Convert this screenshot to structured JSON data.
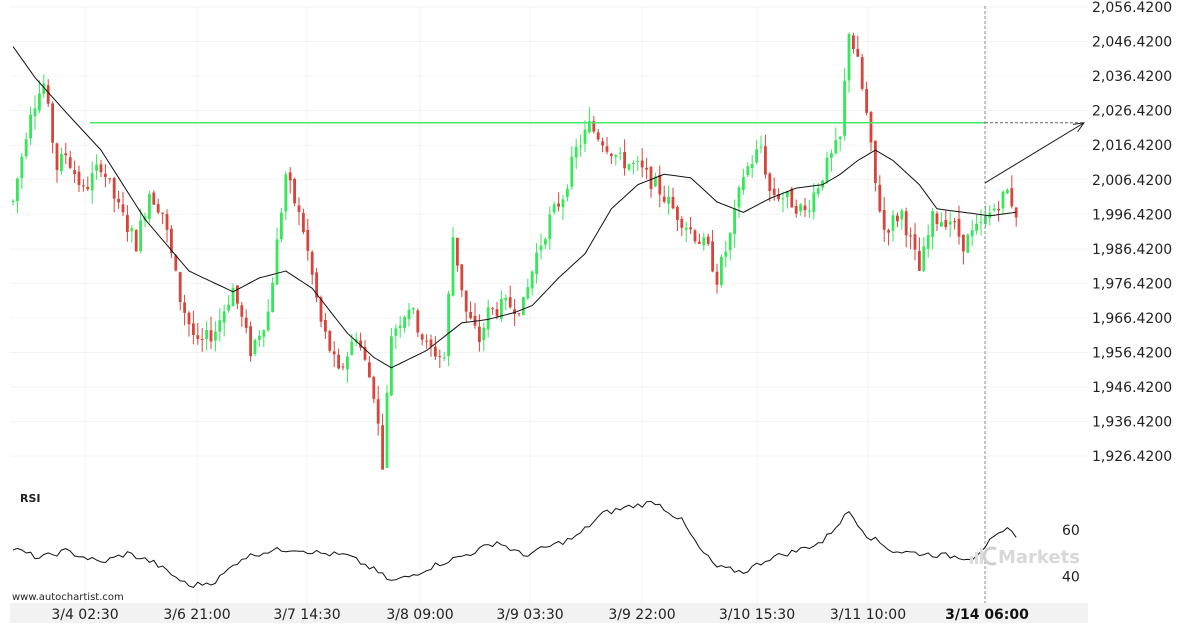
{
  "chart_data": {
    "type": "candlestick",
    "symbol": "",
    "y_axis": {
      "ticks": [
        "2,056.4200",
        "2,046.4200",
        "2,036.4200",
        "2,026.4200",
        "2,016.4200",
        "2,006.4200",
        "1,996.4200",
        "1,986.4200",
        "1,976.4200",
        "1,966.4200",
        "1,956.4200",
        "1,946.4200",
        "1,936.4200",
        "1,926.4200"
      ],
      "range": [
        1923,
        2058
      ]
    },
    "x_axis": {
      "ticks": [
        "3/4 02:30",
        "3/6 21:00",
        "3/7 14:30",
        "3/8 09:00",
        "3/9 03:30",
        "3/9 22:00",
        "3/10 15:30",
        "3/11 10:00",
        "3/14 06:00"
      ],
      "highlighted_tick": "3/14 06:00"
    },
    "resistance_level": 2022.9,
    "projection": {
      "from_price": 2005.5,
      "to_price": 2022.9
    },
    "colors": {
      "up": "#35e85a",
      "down": "#d9443a",
      "level": "#47e86a",
      "moving_average": "#111111"
    },
    "price_path": [
      [
        0,
        2000
      ],
      [
        4,
        2027
      ],
      [
        7,
        2034
      ],
      [
        10,
        2010
      ],
      [
        12,
        2014
      ],
      [
        16,
        2003
      ],
      [
        20,
        2011
      ],
      [
        24,
        1998
      ],
      [
        28,
        1988
      ],
      [
        31,
        2003
      ],
      [
        34,
        1997
      ],
      [
        38,
        1972
      ],
      [
        42,
        1958
      ],
      [
        46,
        1963
      ],
      [
        50,
        1975
      ],
      [
        54,
        1957
      ],
      [
        58,
        1968
      ],
      [
        62,
        2008
      ],
      [
        66,
        1992
      ],
      [
        70,
        1965
      ],
      [
        74,
        1950
      ],
      [
        78,
        1962
      ],
      [
        82,
        1945
      ],
      [
        84,
        1925
      ],
      [
        86,
        1962
      ],
      [
        90,
        1970
      ],
      [
        94,
        1958
      ],
      [
        98,
        1955
      ],
      [
        100,
        1990
      ],
      [
        103,
        1968
      ],
      [
        106,
        1960
      ],
      [
        108,
        1968
      ],
      [
        112,
        1970
      ],
      [
        116,
        1970
      ],
      [
        119,
        1985
      ],
      [
        122,
        1995
      ],
      [
        125,
        2002
      ],
      [
        128,
        2015
      ],
      [
        131,
        2022
      ],
      [
        134,
        2018
      ],
      [
        138,
        2012
      ],
      [
        142,
        2010
      ],
      [
        146,
        2005
      ],
      [
        150,
        1998
      ],
      [
        154,
        1992
      ],
      [
        158,
        1986
      ],
      [
        160,
        1978
      ],
      [
        163,
        1990
      ],
      [
        166,
        2008
      ],
      [
        170,
        2016
      ],
      [
        172,
        2003
      ],
      [
        176,
        2001
      ],
      [
        180,
        1997
      ],
      [
        184,
        2008
      ],
      [
        188,
        2018
      ],
      [
        190,
        2050
      ],
      [
        192,
        2040
      ],
      [
        194,
        2025
      ],
      [
        196,
        2005
      ],
      [
        198,
        1992
      ],
      [
        202,
        1997
      ],
      [
        206,
        1980
      ],
      [
        209,
        1995
      ],
      [
        213,
        1995
      ],
      [
        216,
        1988
      ],
      [
        220,
        1993
      ],
      [
        224,
        2000
      ],
      [
        226,
        2003
      ],
      [
        228,
        1997
      ]
    ],
    "moving_average_path": [
      [
        0,
        2045
      ],
      [
        5,
        2036
      ],
      [
        12,
        2026
      ],
      [
        20,
        2015
      ],
      [
        30,
        1995
      ],
      [
        40,
        1980
      ],
      [
        50,
        1974
      ],
      [
        56,
        1978
      ],
      [
        62,
        1980
      ],
      [
        68,
        1975
      ],
      [
        76,
        1962
      ],
      [
        82,
        1955
      ],
      [
        86,
        1952
      ],
      [
        94,
        1957
      ],
      [
        102,
        1965
      ],
      [
        108,
        1966
      ],
      [
        114,
        1968
      ],
      [
        118,
        1970
      ],
      [
        124,
        1978
      ],
      [
        130,
        1985
      ],
      [
        136,
        1998
      ],
      [
        142,
        2005
      ],
      [
        148,
        2008
      ],
      [
        154,
        2007
      ],
      [
        160,
        2000
      ],
      [
        166,
        1997
      ],
      [
        172,
        2001
      ],
      [
        178,
        2004
      ],
      [
        184,
        2005
      ],
      [
        188,
        2008
      ],
      [
        192,
        2012
      ],
      [
        196,
        2015
      ],
      [
        200,
        2012
      ],
      [
        206,
        2005
      ],
      [
        210,
        1998
      ],
      [
        216,
        1997
      ],
      [
        222,
        1996
      ],
      [
        228,
        1997
      ]
    ],
    "rsi": {
      "title": "RSI",
      "ticks": [
        60,
        40
      ],
      "range": [
        30,
        75
      ],
      "path": [
        [
          0,
          52
        ],
        [
          6,
          48
        ],
        [
          12,
          51
        ],
        [
          20,
          46
        ],
        [
          26,
          50
        ],
        [
          32,
          46
        ],
        [
          40,
          36
        ],
        [
          46,
          38
        ],
        [
          52,
          48
        ],
        [
          58,
          51
        ],
        [
          64,
          52
        ],
        [
          70,
          50
        ],
        [
          76,
          49
        ],
        [
          82,
          43
        ],
        [
          86,
          38
        ],
        [
          90,
          40
        ],
        [
          96,
          45
        ],
        [
          104,
          50
        ],
        [
          110,
          55
        ],
        [
          116,
          49
        ],
        [
          122,
          53
        ],
        [
          128,
          57
        ],
        [
          134,
          67
        ],
        [
          140,
          70
        ],
        [
          146,
          72
        ],
        [
          152,
          64
        ],
        [
          156,
          52
        ],
        [
          160,
          44
        ],
        [
          166,
          42
        ],
        [
          172,
          48
        ],
        [
          178,
          51
        ],
        [
          184,
          55
        ],
        [
          190,
          68
        ],
        [
          194,
          58
        ],
        [
          200,
          51
        ],
        [
          206,
          50
        ],
        [
          212,
          49
        ],
        [
          218,
          48
        ],
        [
          222,
          55
        ],
        [
          226,
          60
        ],
        [
          228,
          58
        ]
      ]
    }
  },
  "footer": {
    "source": "www.autochartist.com",
    "brand": "Markets"
  }
}
